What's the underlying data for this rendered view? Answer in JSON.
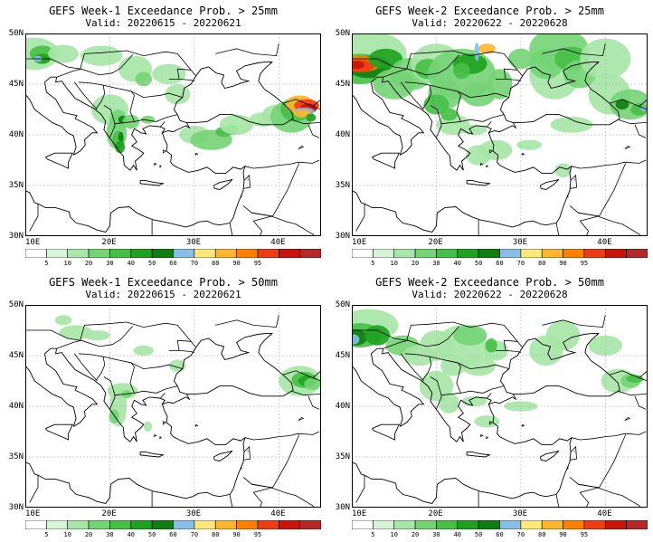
{
  "panels": [
    {
      "title": "GEFS Week-1 Exceedance Prob. > 25mm",
      "valid": "Valid: 20220615 - 20220621"
    },
    {
      "title": "GEFS Week-2 Exceedance Prob. > 25mm",
      "valid": "Valid: 20220622 - 20220628"
    },
    {
      "title": "GEFS Week-1 Exceedance Prob. > 50mm",
      "valid": "Valid: 20220615 - 20220621"
    },
    {
      "title": "GEFS Week-2 Exceedance Prob. > 50mm",
      "valid": "Valid: 20220622 - 20220628"
    }
  ],
  "lat_labels": [
    "50N",
    "45N",
    "40N",
    "35N",
    "30N"
  ],
  "lon_labels": [
    "10E",
    "20E",
    "30E",
    "40E"
  ],
  "colorbar": {
    "labels": [
      "5",
      "10",
      "20",
      "30",
      "40",
      "50",
      "60",
      "70",
      "80",
      "90",
      "95"
    ],
    "colors": [
      "#ffffff",
      "#d6f5d6",
      "#a6e6a6",
      "#74d474",
      "#45c045",
      "#1ea11e",
      "#0f7d0f",
      "#87bfe6",
      "#ffe87a",
      "#ffb52e",
      "#ff7f00",
      "#f03c14",
      "#c8140a",
      "#b42828"
    ]
  },
  "colors": {
    "land_line": "#000000",
    "grid": "#aaaaaa",
    "ocean": "#ffffff"
  }
}
